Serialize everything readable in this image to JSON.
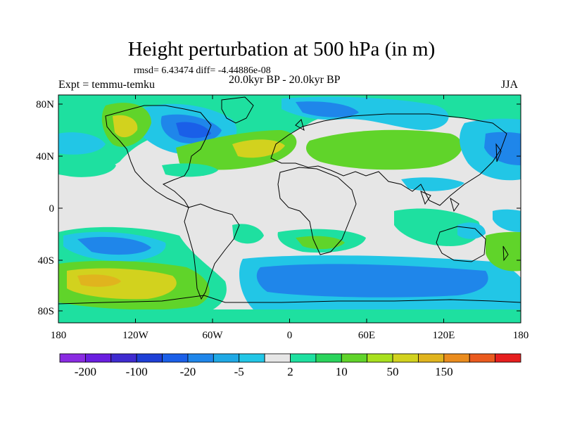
{
  "title": "Height perturbation at 500 hPa (in m)",
  "stats": "rmsd= 6.43474  diff= -4.44886e-08",
  "expt": "Expt = temmu-temku",
  "period": "20.0kyr BP - 20.0kyr BP",
  "season": "JJA",
  "lat_labels": [
    "80N",
    "40N",
    "0",
    "40S",
    "80S"
  ],
  "lon_labels": [
    "180",
    "120W",
    "60W",
    "0",
    "60E",
    "120E",
    "180"
  ],
  "colorbar": {
    "colors": [
      "#8a2be2",
      "#6a1ee0",
      "#3f2bd0",
      "#1e3fd6",
      "#1a5fe8",
      "#1f86ea",
      "#1fa9e5",
      "#22c6e6",
      "#e6e6e6",
      "#1ee0a0",
      "#2ad45c",
      "#60d42a",
      "#a8e01e",
      "#d2d21e",
      "#e0b41e",
      "#ea8c1e",
      "#ea5a1e",
      "#e61e1e"
    ],
    "tick_labels": [
      "-200",
      "-100",
      "-20",
      "-5",
      "2",
      "10",
      "50",
      "150"
    ]
  },
  "map_colors": {
    "no_change": "#e6e6e6",
    "neg_light": "#22c6e6",
    "neg_mid": "#1f86ea",
    "neg_strong": "#1a5fe8",
    "pos_light": "#1ee0a0",
    "pos_mid": "#60d42a",
    "pos_strong": "#d2d21e",
    "pos_max": "#e0b41e"
  }
}
